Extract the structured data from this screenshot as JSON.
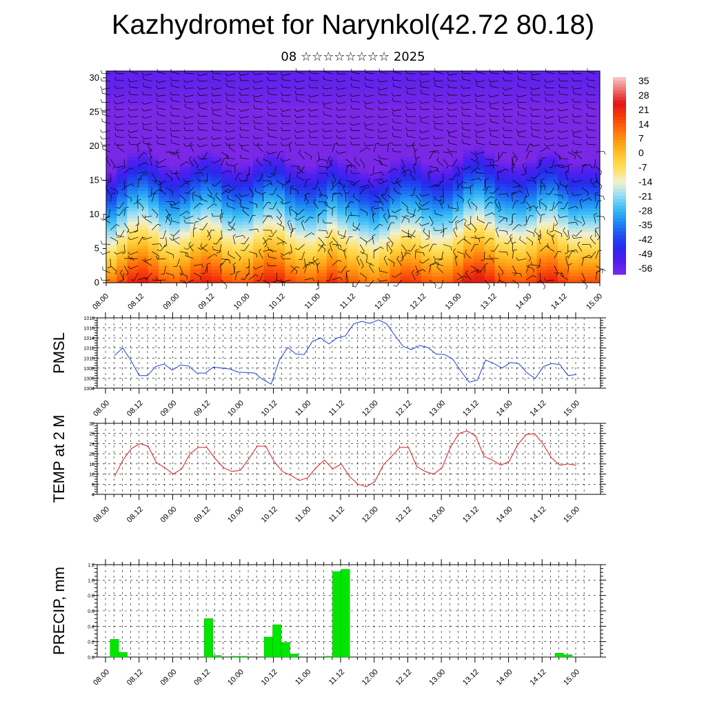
{
  "header": {
    "title": "Kazhydromet for Narynkol(42.72 80.18)",
    "subtitle": "08 ☆☆☆☆☆☆☆☆ 2025"
  },
  "colors": {
    "pmsl_line": "#1f3fd6",
    "temp_line": "#e0141a",
    "precip_bar": "#00e600",
    "precip_edge": "#00aa00"
  },
  "chart_data": [
    {
      "type": "heatmap",
      "title": "Kazhydromet for Narynkol(42.72 80.18)",
      "subtitle": "08 ☆☆☆☆☆☆☆☆ 2025",
      "x_ticks": [
        "08.00",
        "08.12",
        "09.00",
        "09.12",
        "10.00",
        "10.12",
        "11.00",
        "11.12",
        "12.00",
        "12.12",
        "13.00",
        "13.12",
        "14.00",
        "14.12",
        "15.00"
      ],
      "y_ticks": [
        0,
        5,
        10,
        15,
        20,
        25,
        30
      ],
      "ylim": [
        0,
        31
      ],
      "colorbar_labels": [
        35,
        28,
        21,
        14,
        7,
        0,
        -7,
        -14,
        -21,
        -28,
        -35,
        -42,
        -49,
        -56
      ],
      "colorbar_range": [
        -63,
        42
      ],
      "surface_temperature_by_time": [
        13,
        20,
        26,
        28,
        24,
        18,
        16,
        19,
        24,
        27,
        25,
        19,
        17,
        18,
        23,
        27,
        26,
        20,
        17,
        16,
        19,
        24,
        20,
        17,
        14,
        12,
        15,
        20,
        23,
        22,
        18,
        16,
        17,
        22,
        28,
        30,
        26,
        20,
        19,
        18,
        21,
        26,
        27,
        22,
        18,
        19,
        19
      ],
      "wind_barbs": true
    },
    {
      "type": "line",
      "ylabel": "PMSL",
      "y_ticks": [
        1004,
        1006,
        1008,
        1010,
        1012,
        1014,
        1016,
        1018
      ],
      "ylim": [
        1004,
        1018
      ],
      "x_ticks": [
        "08.00",
        "08.12",
        "09.00",
        "09.12",
        "10.00",
        "10.12",
        "11.00",
        "11.12",
        "12.00",
        "12.12",
        "13.00",
        "13.12",
        "14.00",
        "14.12",
        "15.00"
      ],
      "step_hours": 3,
      "values": [
        1010.5,
        1012.0,
        1009.5,
        1006.5,
        1006.5,
        1008.3,
        1008.8,
        1007.6,
        1008.6,
        1008.4,
        1007.0,
        1007.0,
        1008.2,
        1008.0,
        1007.8,
        1007.2,
        1007.1,
        1007.0,
        1005.7,
        1004.8,
        1009.6,
        1012.1,
        1010.8,
        1010.7,
        1013.3,
        1014.0,
        1012.8,
        1014.0,
        1014.4,
        1016.8,
        1017.3,
        1016.9,
        1017.6,
        1016.8,
        1014.5,
        1012.3,
        1011.7,
        1012.5,
        1012.1,
        1010.8,
        1010.7,
        1009.8,
        1007.4,
        1005.2,
        1005.6,
        1009.6,
        1008.9,
        1008.0,
        1009.1,
        1008.9,
        1007.1,
        1005.9,
        1008.3,
        1008.9,
        1008.7,
        1006.5,
        1006.7
      ]
    },
    {
      "type": "line",
      "ylabel": "TEMP at 2 M",
      "y_ticks": [
        4,
        8,
        12,
        16,
        20,
        24,
        28,
        32
      ],
      "ylim": [
        4,
        32
      ],
      "x_ticks": [
        "08.00",
        "08.12",
        "09.00",
        "09.12",
        "10.00",
        "10.12",
        "11.00",
        "11.12",
        "12.00",
        "12.12",
        "13.00",
        "13.12",
        "14.00",
        "14.12",
        "15.00"
      ],
      "step_hours": 3,
      "values": [
        11.0,
        17.5,
        22.0,
        24.0,
        23.0,
        16.5,
        14.5,
        12.0,
        14.0,
        20.0,
        22.5,
        22.5,
        18.0,
        14.5,
        13.0,
        13.5,
        18.0,
        23.0,
        23.0,
        17.0,
        13.0,
        11.5,
        9.5,
        10.5,
        14.5,
        17.5,
        14.0,
        16.0,
        11.0,
        8.0,
        7.0,
        9.0,
        15.5,
        19.0,
        22.5,
        22.5,
        15.0,
        13.0,
        12.0,
        14.5,
        22.5,
        28.0,
        29.0,
        27.0,
        19.0,
        17.5,
        15.5,
        17.0,
        23.5,
        27.5,
        28.0,
        24.0,
        18.5,
        15.5,
        16.0,
        15.5
      ]
    },
    {
      "type": "bar",
      "ylabel": "PRECIP, mm",
      "y_ticks": [
        0.0,
        0.2,
        0.4,
        0.6,
        0.8,
        1.0,
        1.2
      ],
      "ylim": [
        0,
        1.2
      ],
      "x_ticks": [
        "08.00",
        "08.12",
        "09.00",
        "09.12",
        "10.00",
        "10.12",
        "11.00",
        "11.12",
        "12.00",
        "12.12",
        "13.00",
        "13.12",
        "14.00",
        "14.12",
        "15.00"
      ],
      "step_hours": 3,
      "values": [
        0.23,
        0.06,
        0,
        0,
        0,
        0,
        0,
        0,
        0,
        0,
        0,
        0.5,
        0.02,
        0,
        0.01,
        0.01,
        0,
        0,
        0.26,
        0.42,
        0.19,
        0.04,
        0,
        0,
        0,
        0.01,
        1.11,
        1.14,
        0,
        0,
        0,
        0,
        0,
        0,
        0,
        0,
        0,
        0,
        0,
        0,
        0,
        0,
        0,
        0,
        0,
        0,
        0,
        0,
        0,
        0,
        0,
        0,
        0.05,
        0.03,
        0
      ]
    }
  ]
}
